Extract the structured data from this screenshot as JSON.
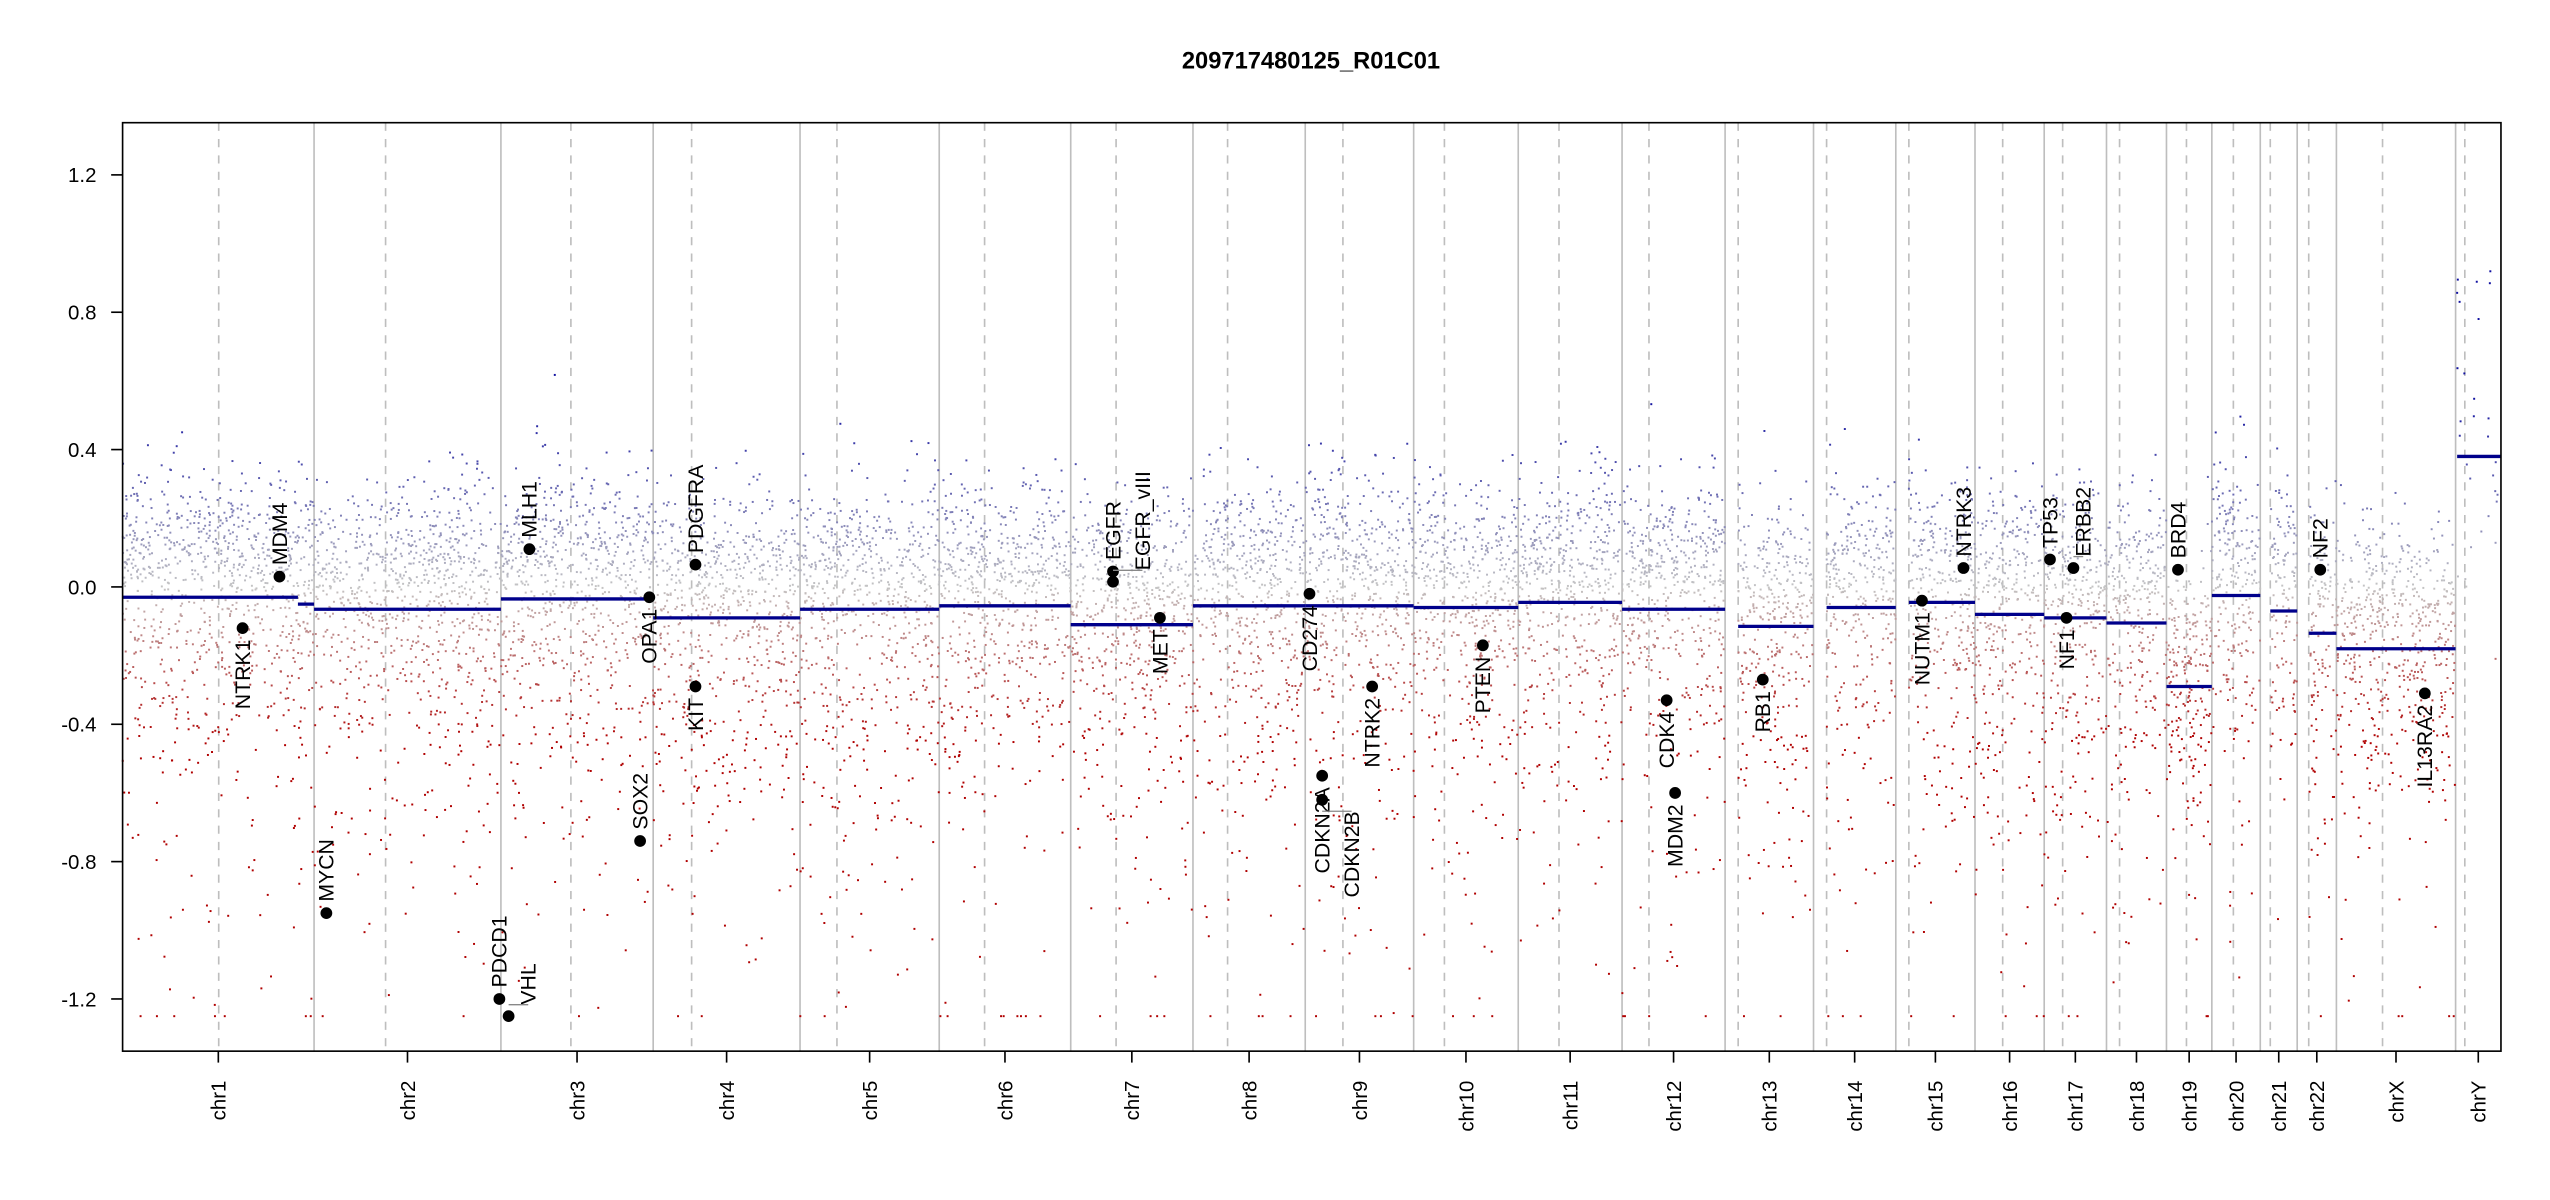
{
  "chart_data": {
    "type": "scatter",
    "title": "209717480125_R01C01",
    "xlabel": "",
    "ylabel": "",
    "ylim": [
      -1.352,
      1.352
    ],
    "yticks": [
      -1.2,
      -0.8,
      -0.4,
      0.0,
      0.4,
      0.8,
      1.2
    ],
    "ytick_labels": [
      "-1.2",
      "-0.8",
      "-0.4",
      "0.0",
      "0.4",
      "0.8",
      "1.2"
    ],
    "grid": false,
    "legend": "none",
    "x_units": "Mb (genomic position, concatenated chromosomes)",
    "colors": {
      "segment": "#00008b",
      "gain": "#1010a0",
      "neutral": "#c4c4c4",
      "loss": "#b00000",
      "boundary": "#bebebe",
      "gene_point": "#000000"
    },
    "probe_clip": [
      -1.25,
      1.25
    ],
    "chromosomes": [
      {
        "name": "chr1",
        "length": 249,
        "centromere": 125
      },
      {
        "name": "chr2",
        "length": 243,
        "centromere": 93
      },
      {
        "name": "chr3",
        "length": 198,
        "centromere": 91
      },
      {
        "name": "chr4",
        "length": 191,
        "centromere": 50
      },
      {
        "name": "chr5",
        "length": 181,
        "centromere": 48
      },
      {
        "name": "chr6",
        "length": 171,
        "centromere": 59
      },
      {
        "name": "chr7",
        "length": 159,
        "centromere": 59
      },
      {
        "name": "chr8",
        "length": 146,
        "centromere": 45
      },
      {
        "name": "chr9",
        "length": 141,
        "centromere": 49
      },
      {
        "name": "chr10",
        "length": 136,
        "centromere": 40
      },
      {
        "name": "chr11",
        "length": 135,
        "centromere": 53
      },
      {
        "name": "chr12",
        "length": 134,
        "centromere": 35
      },
      {
        "name": "chr13",
        "length": 115,
        "centromere": 17
      },
      {
        "name": "chr14",
        "length": 107,
        "centromere": 17
      },
      {
        "name": "chr15",
        "length": 103,
        "centromere": 17
      },
      {
        "name": "chr16",
        "length": 90,
        "centromere": 36
      },
      {
        "name": "chr17",
        "length": 81,
        "centromere": 24
      },
      {
        "name": "chr18",
        "length": 78,
        "centromere": 17
      },
      {
        "name": "chr19",
        "length": 59,
        "centromere": 26
      },
      {
        "name": "chr20",
        "length": 63,
        "centromere": 28
      },
      {
        "name": "chr21",
        "length": 48,
        "centromere": 13
      },
      {
        "name": "chr22",
        "length": 51,
        "centromere": 15
      },
      {
        "name": "chrX",
        "length": 155,
        "centromere": 60
      },
      {
        "name": "chrY",
        "length": 59,
        "centromere": 12
      }
    ],
    "segments": [
      {
        "chrom": "chr1",
        "start": 0,
        "end": 228,
        "value": -0.03
      },
      {
        "chrom": "chr1",
        "start": 228,
        "end": 249,
        "value": -0.05
      },
      {
        "chrom": "chr2",
        "start": 0,
        "end": 243,
        "value": -0.065
      },
      {
        "chrom": "chr3",
        "start": 0,
        "end": 198,
        "value": -0.035
      },
      {
        "chrom": "chr4",
        "start": 0,
        "end": 191,
        "value": -0.09
      },
      {
        "chrom": "chr5",
        "start": 0,
        "end": 181,
        "value": -0.065
      },
      {
        "chrom": "chr6",
        "start": 0,
        "end": 171,
        "value": -0.055
      },
      {
        "chrom": "chr7",
        "start": 0,
        "end": 159,
        "value": -0.11
      },
      {
        "chrom": "chr8",
        "start": 0,
        "end": 146,
        "value": -0.055
      },
      {
        "chrom": "chr9",
        "start": 0,
        "end": 141,
        "value": -0.055
      },
      {
        "chrom": "chr10",
        "start": 0,
        "end": 136,
        "value": -0.06
      },
      {
        "chrom": "chr11",
        "start": 0,
        "end": 135,
        "value": -0.045
      },
      {
        "chrom": "chr12",
        "start": 0,
        "end": 134,
        "value": -0.065
      },
      {
        "chrom": "chr13",
        "start": 17,
        "end": 115,
        "value": -0.115
      },
      {
        "chrom": "chr14",
        "start": 17,
        "end": 107,
        "value": -0.06
      },
      {
        "chrom": "chr15",
        "start": 17,
        "end": 103,
        "value": -0.045
      },
      {
        "chrom": "chr16",
        "start": 0,
        "end": 90,
        "value": -0.08
      },
      {
        "chrom": "chr17",
        "start": 0,
        "end": 81,
        "value": -0.09
      },
      {
        "chrom": "chr18",
        "start": 0,
        "end": 78,
        "value": -0.105
      },
      {
        "chrom": "chr19",
        "start": 0,
        "end": 59,
        "value": -0.29
      },
      {
        "chrom": "chr20",
        "start": 0,
        "end": 63,
        "value": -0.025
      },
      {
        "chrom": "chr21",
        "start": 13,
        "end": 48,
        "value": -0.07
      },
      {
        "chrom": "chr22",
        "start": 15,
        "end": 51,
        "value": -0.135
      },
      {
        "chrom": "chrX",
        "start": 0,
        "end": 155,
        "value": -0.18
      },
      {
        "chrom": "chrY",
        "start": 2,
        "end": 59,
        "value": 0.38
      }
    ],
    "genes": [
      {
        "name": "NTRK1",
        "chrom": "chr1",
        "pos": 156,
        "value": -0.12,
        "label_pos": "below"
      },
      {
        "name": "MDM4",
        "chrom": "chr1",
        "pos": 204,
        "value": 0.03,
        "label_pos": "above"
      },
      {
        "name": "MYCN",
        "chrom": "chr2",
        "pos": 16,
        "value": -0.95,
        "label_pos": "above"
      },
      {
        "name": "PDCD1",
        "chrom": "chr2",
        "pos": 241,
        "value": -1.2,
        "label_pos": "above"
      },
      {
        "name": "VHL",
        "chrom": "chr3",
        "pos": 10,
        "value": -1.25,
        "label_pos": "above"
      },
      {
        "name": "MLH1",
        "chrom": "chr3",
        "pos": 37,
        "value": 0.11,
        "label_pos": "above"
      },
      {
        "name": "SOX2",
        "chrom": "chr3",
        "pos": 181,
        "value": -0.74,
        "label_pos": "above"
      },
      {
        "name": "OPA1",
        "chrom": "chr3",
        "pos": 193,
        "value": -0.03,
        "label_pos": "below"
      },
      {
        "name": "PDGFRA",
        "chrom": "chr4",
        "pos": 55,
        "value": 0.065,
        "label_pos": "above"
      },
      {
        "name": "KIT",
        "chrom": "chr4",
        "pos": 55,
        "value": -0.29,
        "label_pos": "below"
      },
      {
        "name": "EGFR",
        "chrom": "chr7",
        "pos": 55,
        "value": 0.045,
        "label_pos": "above"
      },
      {
        "name": "EGFR_vIII",
        "chrom": "chr7",
        "pos": 55,
        "value": 0.015,
        "label_pos": "above"
      },
      {
        "name": "MET",
        "chrom": "chr7",
        "pos": 116,
        "value": -0.09,
        "label_pos": "below"
      },
      {
        "name": "CD274",
        "chrom": "chr9",
        "pos": 5.5,
        "value": -0.02,
        "label_pos": "below"
      },
      {
        "name": "CDKN2A",
        "chrom": "chr9",
        "pos": 22,
        "value": -0.55,
        "label_pos": "below"
      },
      {
        "name": "CDKN2B",
        "chrom": "chr9",
        "pos": 22,
        "value": -0.62,
        "label_pos": "below"
      },
      {
        "name": "NTRK2",
        "chrom": "chr9",
        "pos": 87,
        "value": -0.29,
        "label_pos": "below"
      },
      {
        "name": "PTEN",
        "chrom": "chr10",
        "pos": 90,
        "value": -0.17,
        "label_pos": "below"
      },
      {
        "name": "CDK4",
        "chrom": "chr12",
        "pos": 58,
        "value": -0.33,
        "label_pos": "below"
      },
      {
        "name": "MDM2",
        "chrom": "chr12",
        "pos": 69,
        "value": -0.6,
        "label_pos": "below"
      },
      {
        "name": "RB1",
        "chrom": "chr13",
        "pos": 49,
        "value": -0.27,
        "label_pos": "below"
      },
      {
        "name": "NUTM1",
        "chrom": "chr15",
        "pos": 34,
        "value": -0.04,
        "label_pos": "below"
      },
      {
        "name": "NTRK3",
        "chrom": "chr15",
        "pos": 88,
        "value": 0.055,
        "label_pos": "above"
      },
      {
        "name": "TP53",
        "chrom": "chr17",
        "pos": 7.5,
        "value": 0.08,
        "label_pos": "above"
      },
      {
        "name": "NF1",
        "chrom": "chr17",
        "pos": 29,
        "value": -0.09,
        "label_pos": "below"
      },
      {
        "name": "ERBB2",
        "chrom": "chr17",
        "pos": 38,
        "value": 0.055,
        "label_pos": "above"
      },
      {
        "name": "BRD4",
        "chrom": "chr19",
        "pos": 15,
        "value": 0.05,
        "label_pos": "above"
      },
      {
        "name": "NF2",
        "chrom": "chr22",
        "pos": 30,
        "value": 0.05,
        "label_pos": "above"
      },
      {
        "name": "IL13RA2",
        "chrom": "chrX",
        "pos": 115,
        "value": -0.31,
        "label_pos": "below"
      }
    ]
  }
}
